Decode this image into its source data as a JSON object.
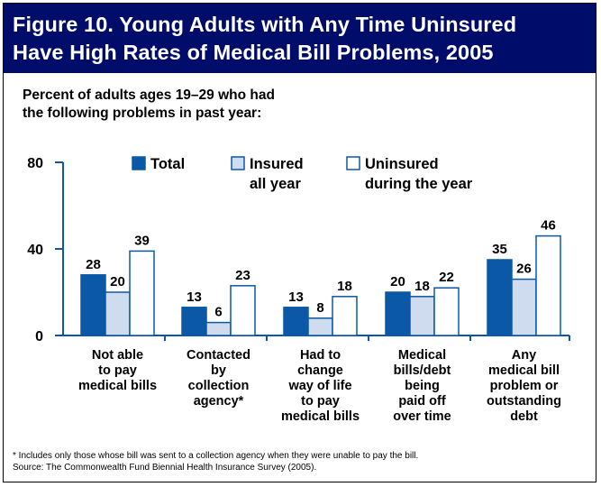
{
  "title": {
    "line1": "Figure 10. Young Adults with Any Time Uninsured",
    "line2": "Have High Rates of Medical Bill Problems, 2005"
  },
  "subtitle": {
    "line1": "Percent of adults ages 19–29 who had",
    "line2": "the following problems in past year:"
  },
  "colors": {
    "title_bg": "#000c6a",
    "total": "#0b58a6",
    "insured": "#cfdcef",
    "uninsured": "#ffffff",
    "axis": "#0b58a6"
  },
  "chart_data": {
    "type": "bar",
    "categories": [
      [
        "Not able",
        "to pay",
        "medical bills"
      ],
      [
        "Contacted",
        "by",
        "collection",
        "agency*"
      ],
      [
        "Had to",
        "change",
        "way of life",
        "to pay",
        "medical bills"
      ],
      [
        "Medical",
        "bills/debt",
        "being",
        "paid off",
        "over time"
      ],
      [
        "Any",
        "medical bill",
        "problem or",
        "outstanding",
        "debt"
      ]
    ],
    "series": [
      {
        "name": "Total",
        "legend_lines": [
          "Total"
        ],
        "color": "#0b58a6",
        "values": [
          28,
          13,
          13,
          20,
          35
        ]
      },
      {
        "name": "Insured all year",
        "legend_lines": [
          "Insured",
          "all year"
        ],
        "color": "#cfdcef",
        "values": [
          20,
          6,
          8,
          18,
          26
        ]
      },
      {
        "name": "Uninsured during the year",
        "legend_lines": [
          "Uninsured",
          "during the year"
        ],
        "color": "#ffffff",
        "values": [
          39,
          23,
          18,
          22,
          46
        ]
      }
    ],
    "yticks": [
      0,
      40,
      80
    ],
    "ylim": [
      0,
      80
    ],
    "grid": false,
    "legend_position": "top-center"
  },
  "footnote": {
    "line1": "* Includes only those whose bill was sent to a collection agency when they were unable to pay the bill.",
    "line2": "Source: The Commonwealth Fund Biennial Health Insurance Survey (2005)."
  }
}
